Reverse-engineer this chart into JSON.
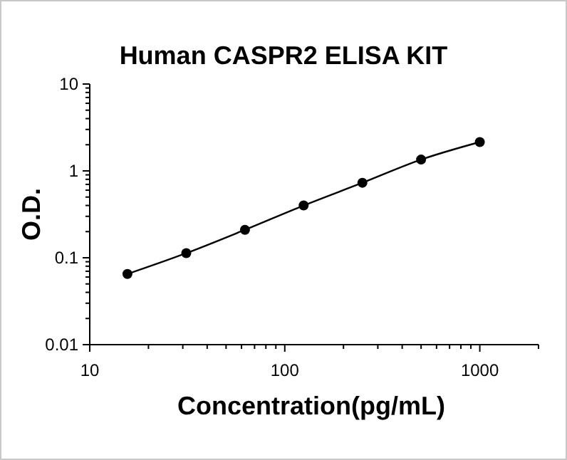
{
  "chart_data": {
    "type": "line",
    "title": "Human CASPR2 ELISA KIT",
    "xlabel": "Concentration(pg/mL)",
    "ylabel": "O.D.",
    "log": "xy",
    "marker": "circle",
    "line_style": "solid",
    "grid": false,
    "xlim": [
      10,
      2000
    ],
    "ylim": [
      0.01,
      10
    ],
    "xticks": [
      10,
      {
        "value": 20,
        "label": null
      },
      {
        "value": 30,
        "label": null
      },
      {
        "value": 40,
        "label": null
      },
      {
        "value": 50,
        "label": null
      },
      {
        "value": 60,
        "label": null
      },
      {
        "value": 70,
        "label": null
      },
      {
        "value": 80,
        "label": null
      },
      {
        "value": 90,
        "label": null
      },
      100,
      {
        "value": 200,
        "label": null
      },
      {
        "value": 300,
        "label": null
      },
      {
        "value": 400,
        "label": null
      },
      {
        "value": 500,
        "label": null
      },
      {
        "value": 600,
        "label": null
      },
      {
        "value": 700,
        "label": null
      },
      {
        "value": 800,
        "label": null
      },
      {
        "value": 900,
        "label": null
      },
      1000,
      {
        "value": 2000,
        "label": null
      }
    ],
    "yticks": [
      0.01,
      {
        "value": 0.02,
        "label": null
      },
      {
        "value": 0.03,
        "label": null
      },
      {
        "value": 0.04,
        "label": null
      },
      {
        "value": 0.05,
        "label": null
      },
      {
        "value": 0.06,
        "label": null
      },
      {
        "value": 0.07,
        "label": null
      },
      {
        "value": 0.08,
        "label": null
      },
      {
        "value": 0.09,
        "label": null
      },
      0.1,
      {
        "value": 0.2,
        "label": null
      },
      {
        "value": 0.3,
        "label": null
      },
      {
        "value": 0.4,
        "label": null
      },
      {
        "value": 0.5,
        "label": null
      },
      {
        "value": 0.6,
        "label": null
      },
      {
        "value": 0.7,
        "label": null
      },
      {
        "value": 0.8,
        "label": null
      },
      {
        "value": 0.9,
        "label": null
      },
      1,
      {
        "value": 2,
        "label": null
      },
      {
        "value": 3,
        "label": null
      },
      {
        "value": 4,
        "label": null
      },
      {
        "value": 5,
        "label": null
      },
      {
        "value": 6,
        "label": null
      },
      {
        "value": 7,
        "label": null
      },
      {
        "value": 8,
        "label": null
      },
      {
        "value": 9,
        "label": null
      },
      10
    ],
    "x": [
      15.6,
      31.25,
      62.5,
      125,
      250,
      500,
      1000
    ],
    "series": [
      {
        "color": "#000000",
        "values": [
          0.065,
          0.113,
          0.21,
          0.4,
          0.73,
          1.35,
          2.15
        ]
      }
    ]
  }
}
